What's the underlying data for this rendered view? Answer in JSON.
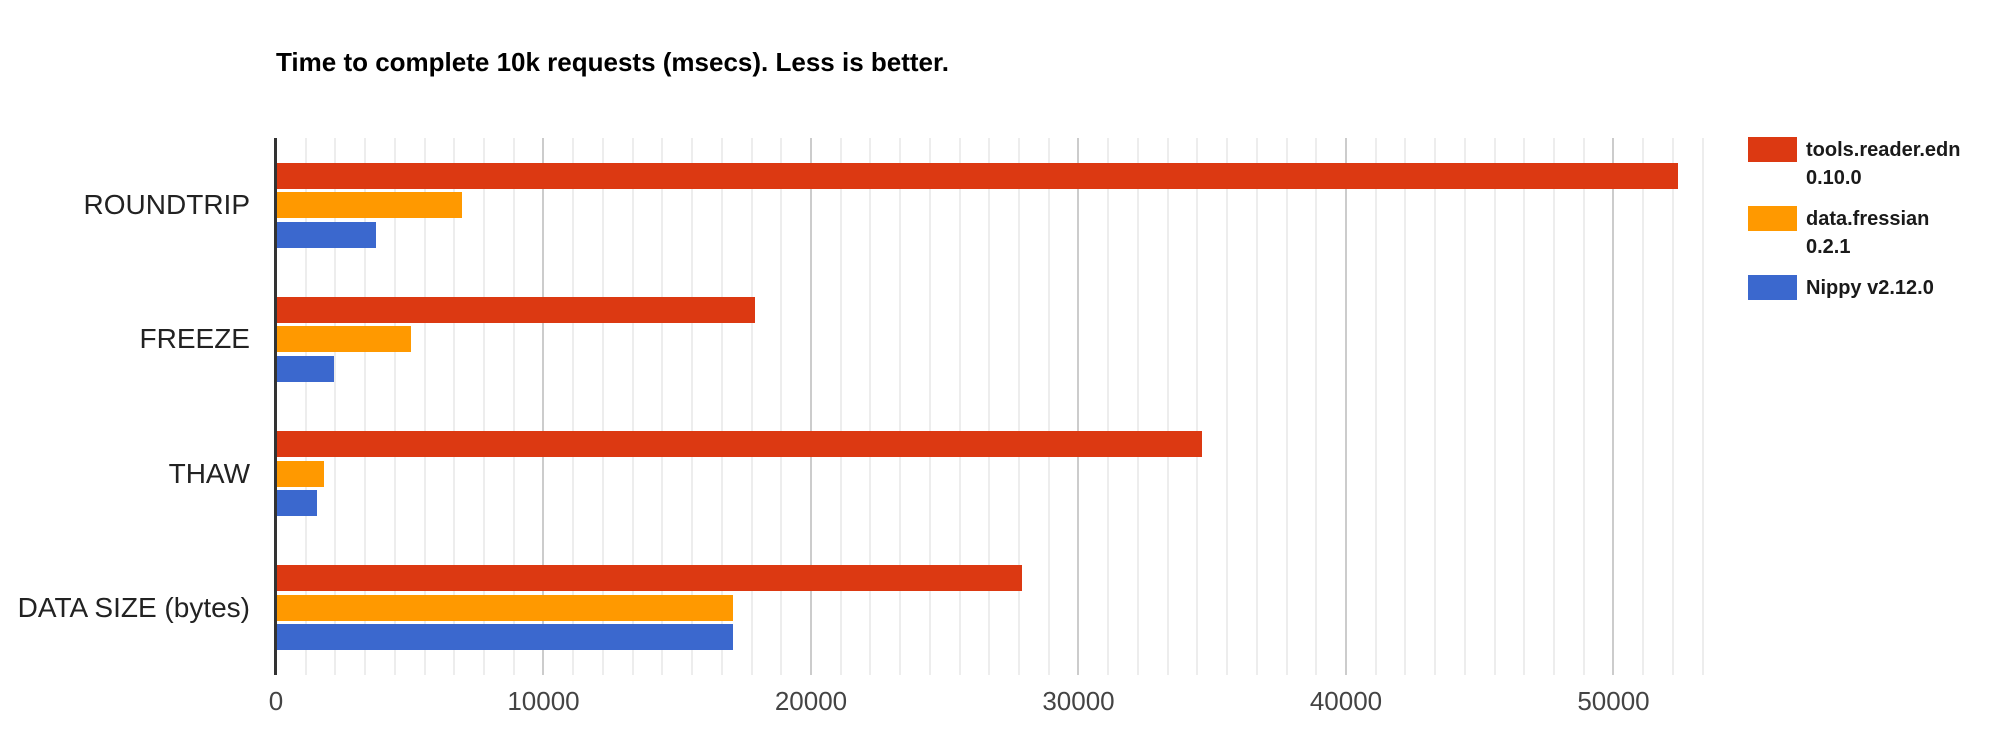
{
  "chart_data": {
    "type": "bar",
    "orientation": "horizontal",
    "title": "Time to complete 10k requests (msecs). Less is better.",
    "categories": [
      "ROUNDTRIP",
      "FREEZE",
      "THAW",
      "DATA SIZE (bytes)"
    ],
    "series": [
      {
        "name": "tools.reader.edn 0.10.0",
        "legend_lines": [
          "tools.reader.edn",
          "0.10.0"
        ],
        "color": "#dc3912",
        "values": [
          52400,
          17900,
          34600,
          27900
        ]
      },
      {
        "name": "data.fressian 0.2.1",
        "legend_lines": [
          "data.fressian",
          "0.2.1"
        ],
        "color": "#ff9900",
        "values": [
          6950,
          5050,
          1780,
          17100
        ]
      },
      {
        "name": "Nippy v2.12.0",
        "legend_lines": [
          "Nippy v2.12.0"
        ],
        "color": "#3b68ce",
        "values": [
          3720,
          2150,
          1550,
          17100
        ]
      }
    ],
    "x_axis": {
      "ticks": [
        0,
        10000,
        20000,
        30000,
        40000,
        50000
      ],
      "tick_labels": [
        "0",
        "10000",
        "20000",
        "30000",
        "40000",
        "50000"
      ],
      "max": 54730,
      "minor_step": 1111.11,
      "minor_count": 48
    },
    "ylim_categories": 4,
    "legend_position": "right",
    "grid": true
  },
  "colors": {
    "background": "#ffffff",
    "axis_line": "#333333",
    "major_gridline": "#cccccc",
    "minor_gridline": "#ededed",
    "tick_label": "#444444",
    "category_label": "#222222",
    "title": "#000000"
  }
}
